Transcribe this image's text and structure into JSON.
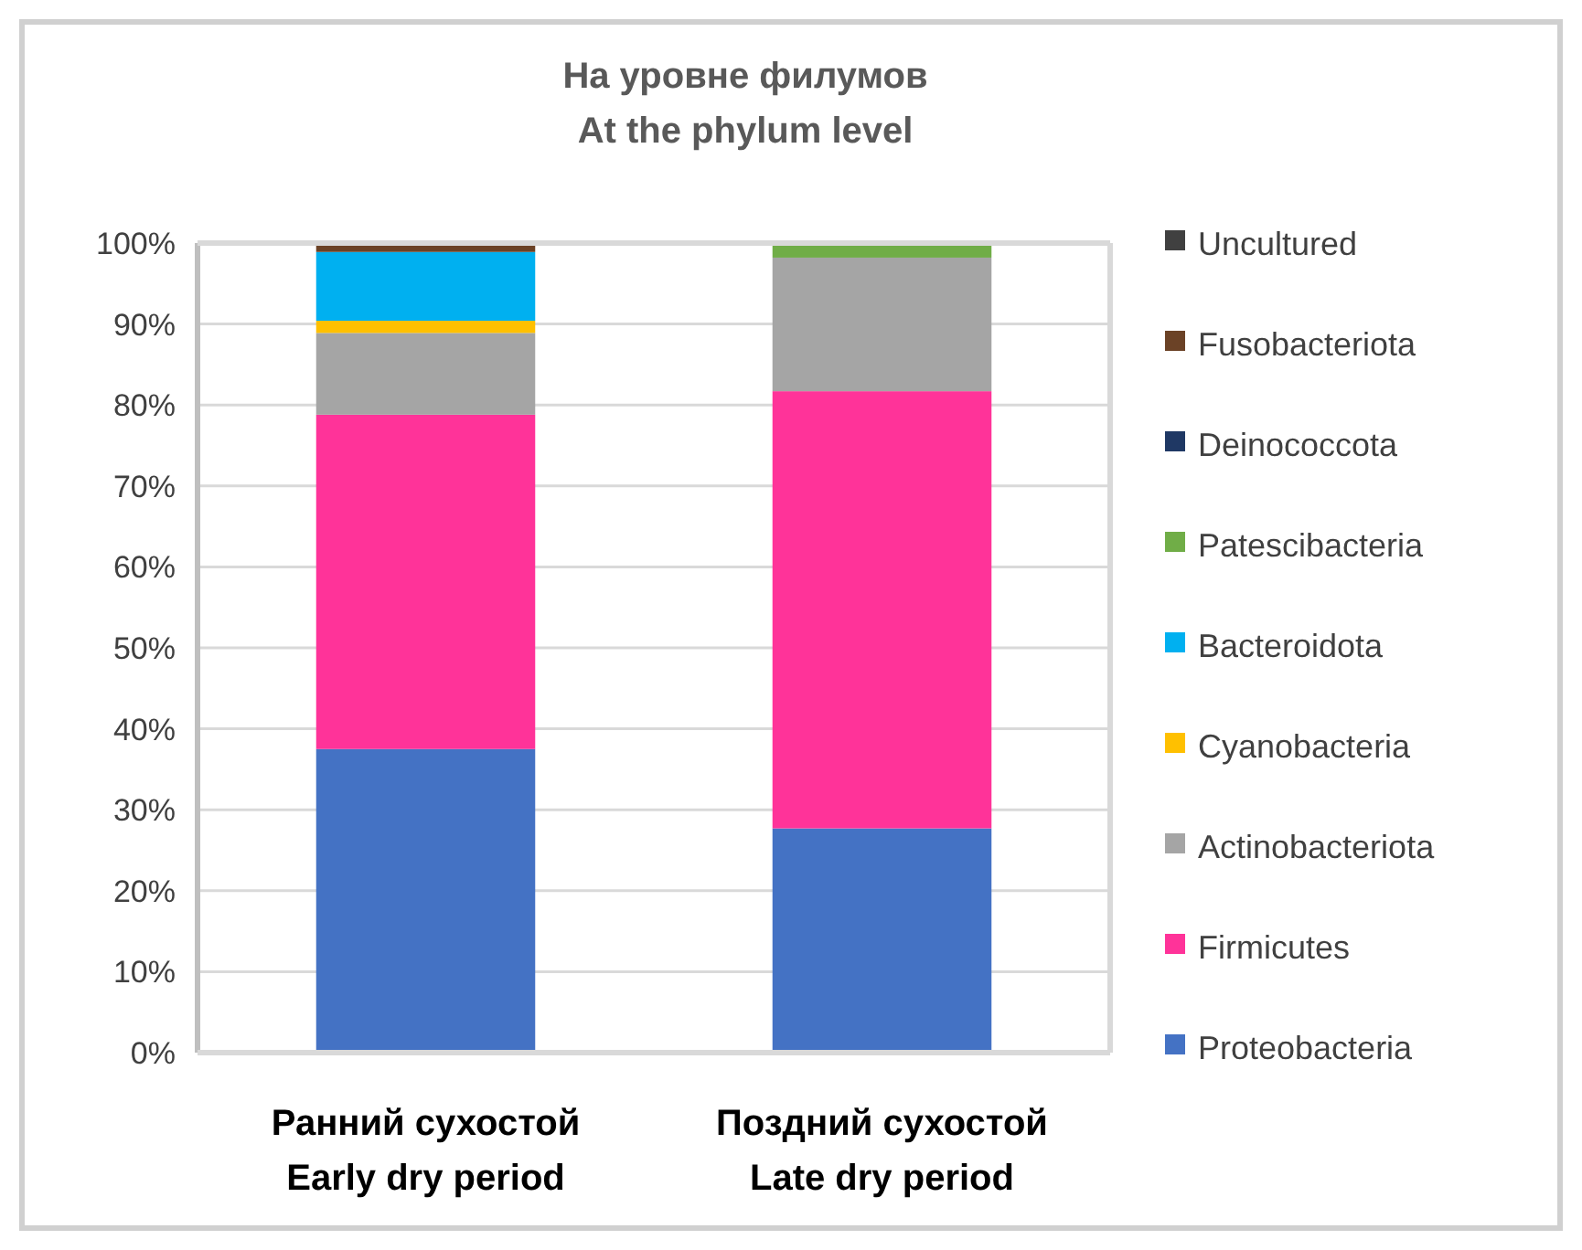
{
  "chart_data": {
    "type": "bar",
    "title": "На уровне филумов",
    "subtitle": "At the phylum level",
    "categories": [
      "Ранний сухостой\nEarly dry period",
      "Поздний сухостой\nLate dry period"
    ],
    "stacked": true,
    "series": [
      {
        "name": "Proteobacteria",
        "color": "#4472c4",
        "values": [
          37.5,
          27.7
        ]
      },
      {
        "name": "Firmicutes",
        "color": "#ff3399",
        "values": [
          41.3,
          54.0
        ]
      },
      {
        "name": "Actinobacteriota",
        "color": "#a5a5a5",
        "values": [
          10.1,
          16.5
        ]
      },
      {
        "name": "Cyanobacteria",
        "color": "#ffc000",
        "values": [
          1.5,
          0
        ]
      },
      {
        "name": "Bacteroidota",
        "color": "#00b0f0",
        "values": [
          8.5,
          0
        ]
      },
      {
        "name": "Patescibacteria",
        "color": "#70ad47",
        "values": [
          0,
          1.8
        ]
      },
      {
        "name": "Deinococcota",
        "color": "#1f3864",
        "values": [
          0,
          0
        ]
      },
      {
        "name": "Fusobacteriota",
        "color": "#6b4226",
        "values": [
          1.1,
          0
        ]
      },
      {
        "name": "Uncultured",
        "color": "#404040",
        "values": [
          0,
          0
        ]
      }
    ],
    "ylim": [
      0,
      100
    ],
    "yticks": [
      {
        "value": 0,
        "label": "0%"
      },
      {
        "value": 10,
        "label": "10%"
      },
      {
        "value": 20,
        "label": "20%"
      },
      {
        "value": 30,
        "label": "30%"
      },
      {
        "value": 40,
        "label": "40%"
      },
      {
        "value": 50,
        "label": "50%"
      },
      {
        "value": 60,
        "label": "60%"
      },
      {
        "value": 70,
        "label": "70%"
      },
      {
        "value": 80,
        "label": "80%"
      },
      {
        "value": 90,
        "label": "90%"
      },
      {
        "value": 100,
        "label": "100%"
      }
    ],
    "grid": "y",
    "legend": "right"
  }
}
